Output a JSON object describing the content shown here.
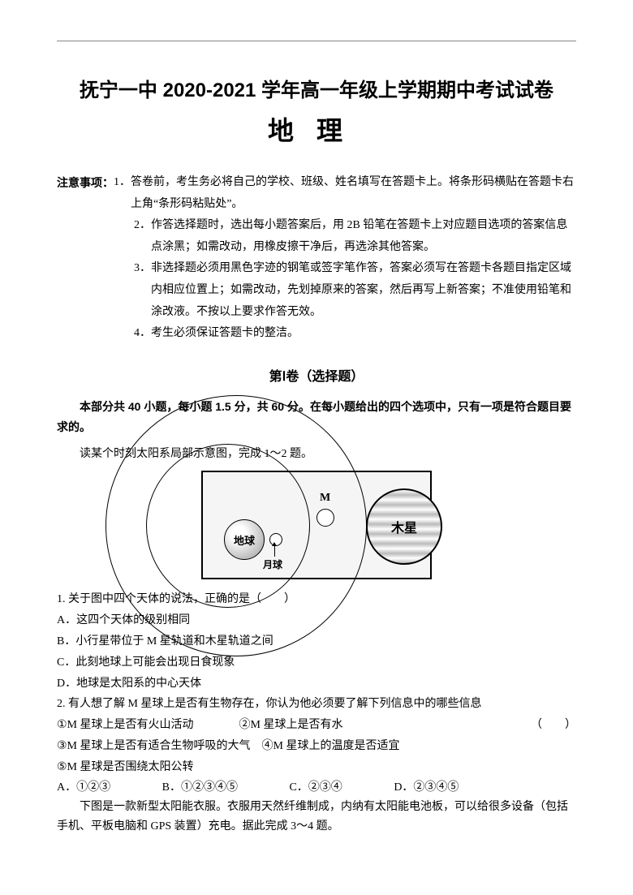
{
  "header": {
    "main_title": "抚宁一中 2020-2021 学年高一年级上学期期中考试试卷",
    "subject": "地理"
  },
  "notes": {
    "label": "注意事项：",
    "items": [
      {
        "num": "1．",
        "text": "答卷前，考生务必将自己的学校、班级、姓名填写在答题卡上。将条形码横贴在答题卡右上角“条形码粘贴处”。"
      },
      {
        "num": "2．",
        "text": "作答选择题时，选出每小题答案后，用 2B 铅笔在答题卡上对应题目选项的答案信息点涂黑；如需改动，用橡皮擦干净后，再选涂其他答案。"
      },
      {
        "num": "3．",
        "text": "非选择题必须用黑色字迹的钢笔或签字笔作答，答案必须写在答题卡各题目指定区域内相应位置上；如需改动，先划掉原来的答案，然后再写上新答案；不准使用铅笔和涂改液。不按以上要求作答无效。"
      },
      {
        "num": "4．",
        "text": "考生必须保证答题卡的整洁。"
      }
    ]
  },
  "section1": {
    "title": "第Ⅰ卷（选择题）",
    "instruction_bold": "本部分共 40 小题，每小题 1.5 分，共 60 分。在每小题给出的四个选项中，只有一项是符合题目要求的。",
    "context1": "读某个时刻太阳系局部示意图，完成 1～2 题。"
  },
  "diagram": {
    "earth_label": "地球",
    "moon_label": "月球",
    "m_label": "M",
    "jupiter_label": "木星"
  },
  "q1": {
    "stem": "1. 关于图中四个天体的说法，正确的是（　　）",
    "A": "A．这四个天体的级别相同",
    "B": "B．小行星带位于 M 星轨道和木星轨道之间",
    "C": "C．此刻地球上可能会出现日食现象",
    "D": "D．地球是太阳系的中心天体"
  },
  "q2": {
    "stem": "2. 有人想了解 M 星球上是否有生物存在，你认为他必须要了解下列信息中的哪些信息",
    "opts_line1": "①M 星球上是否有火山活动　　　　②M 星球上是否有水",
    "right_paren": "（　　）",
    "opts_line2": "③M 星球上是否有适合生物呼吸的大气　④M 星球上的温度是否适宜",
    "opts_line3": "⑤M 星球是否围绕太阳公转",
    "A": "A．①②③",
    "B": "B．①②③④⑤",
    "C": "C．②③④",
    "D": "D．②③④⑤"
  },
  "context2": "下图是一款新型太阳能衣服。衣服用天然纤维制成，内纳有太阳能电池板，可以给很多设备（包括手机、平板电脑和 GPS 装置）充电。据此完成 3～4 题。"
}
